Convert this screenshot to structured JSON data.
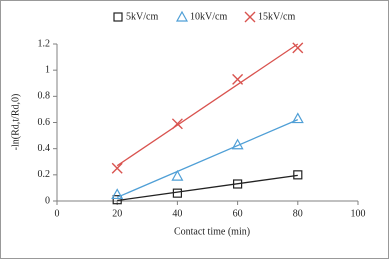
{
  "chart_data": {
    "type": "scatter",
    "x_label": "Contact time (min)",
    "y_label": "-ln(Rd,t/Rd,0)",
    "x": [
      20,
      40,
      60,
      80
    ],
    "series": [
      {
        "name": "5kV/cm",
        "color": "#222222",
        "marker": "square",
        "values": [
          0.01,
          0.06,
          0.13,
          0.2
        ]
      },
      {
        "name": "10kV/cm",
        "color": "#4f9fd6",
        "marker": "triangle",
        "values": [
          0.05,
          0.19,
          0.43,
          0.63
        ]
      },
      {
        "name": "15kV/cm",
        "color": "#d9534f",
        "marker": "cross",
        "values": [
          0.25,
          0.59,
          0.93,
          1.17
        ]
      }
    ],
    "xlim": [
      0,
      100
    ],
    "xticks": [
      0,
      20,
      40,
      60,
      80,
      100
    ],
    "ylim": [
      0,
      1.2
    ],
    "yticks": [
      0,
      0.2,
      0.4,
      0.6,
      0.8,
      1,
      1.2
    ],
    "trendline": true,
    "legend": "top"
  }
}
